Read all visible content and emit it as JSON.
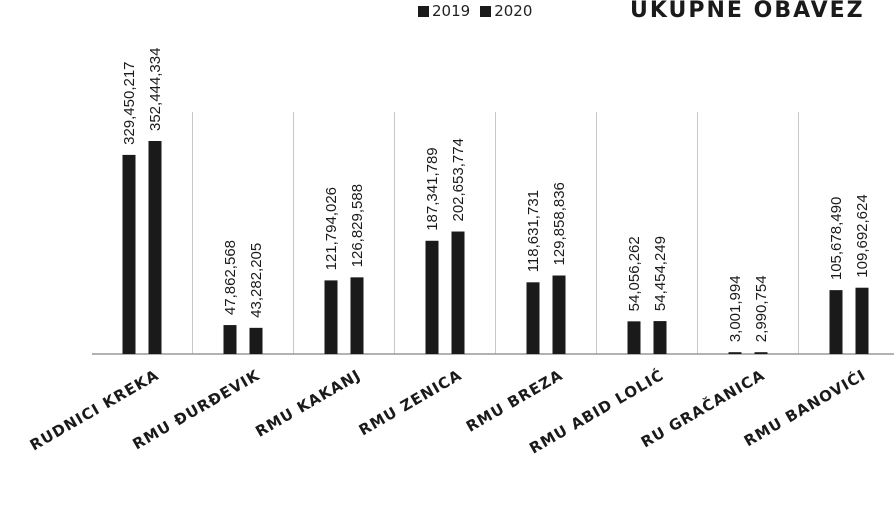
{
  "chart_data": {
    "type": "bar",
    "title": "UKUPNE OBAVEZ",
    "categories": [
      "RUDNICI KREKA",
      "RMU ĐURĐEVIK",
      "RMU KAKANJ",
      "RMU ZENICA",
      "RMU BREZA",
      "RMU ABID LOLIĆ",
      "RU GRAČANICA",
      "RMU BANOVIĆI"
    ],
    "series": [
      {
        "name": "2019",
        "values": [
          329450217,
          47862568,
          121794026,
          187341789,
          118631731,
          54056262,
          3001994,
          105678490
        ],
        "labels": [
          "329,450,217",
          "47,862,568",
          "121,794,026",
          "187,341,789",
          "118,631,731",
          "54,056,262",
          "3,001,994",
          "105,678,490"
        ]
      },
      {
        "name": "2020",
        "values": [
          352444334,
          43282205,
          126829588,
          202653774,
          129858836,
          54454249,
          2990754,
          109692624
        ],
        "labels": [
          "352,444,334",
          "43,282,205",
          "126,829,588",
          "202,653,774",
          "129,858,836",
          "54,454,249",
          "2,990,754",
          "109,692,624"
        ]
      }
    ],
    "legend": "top",
    "grid": false,
    "colors": {
      "bars": "#1a1a1a",
      "axis": "#999999",
      "separator": "#c8c8c8"
    }
  }
}
